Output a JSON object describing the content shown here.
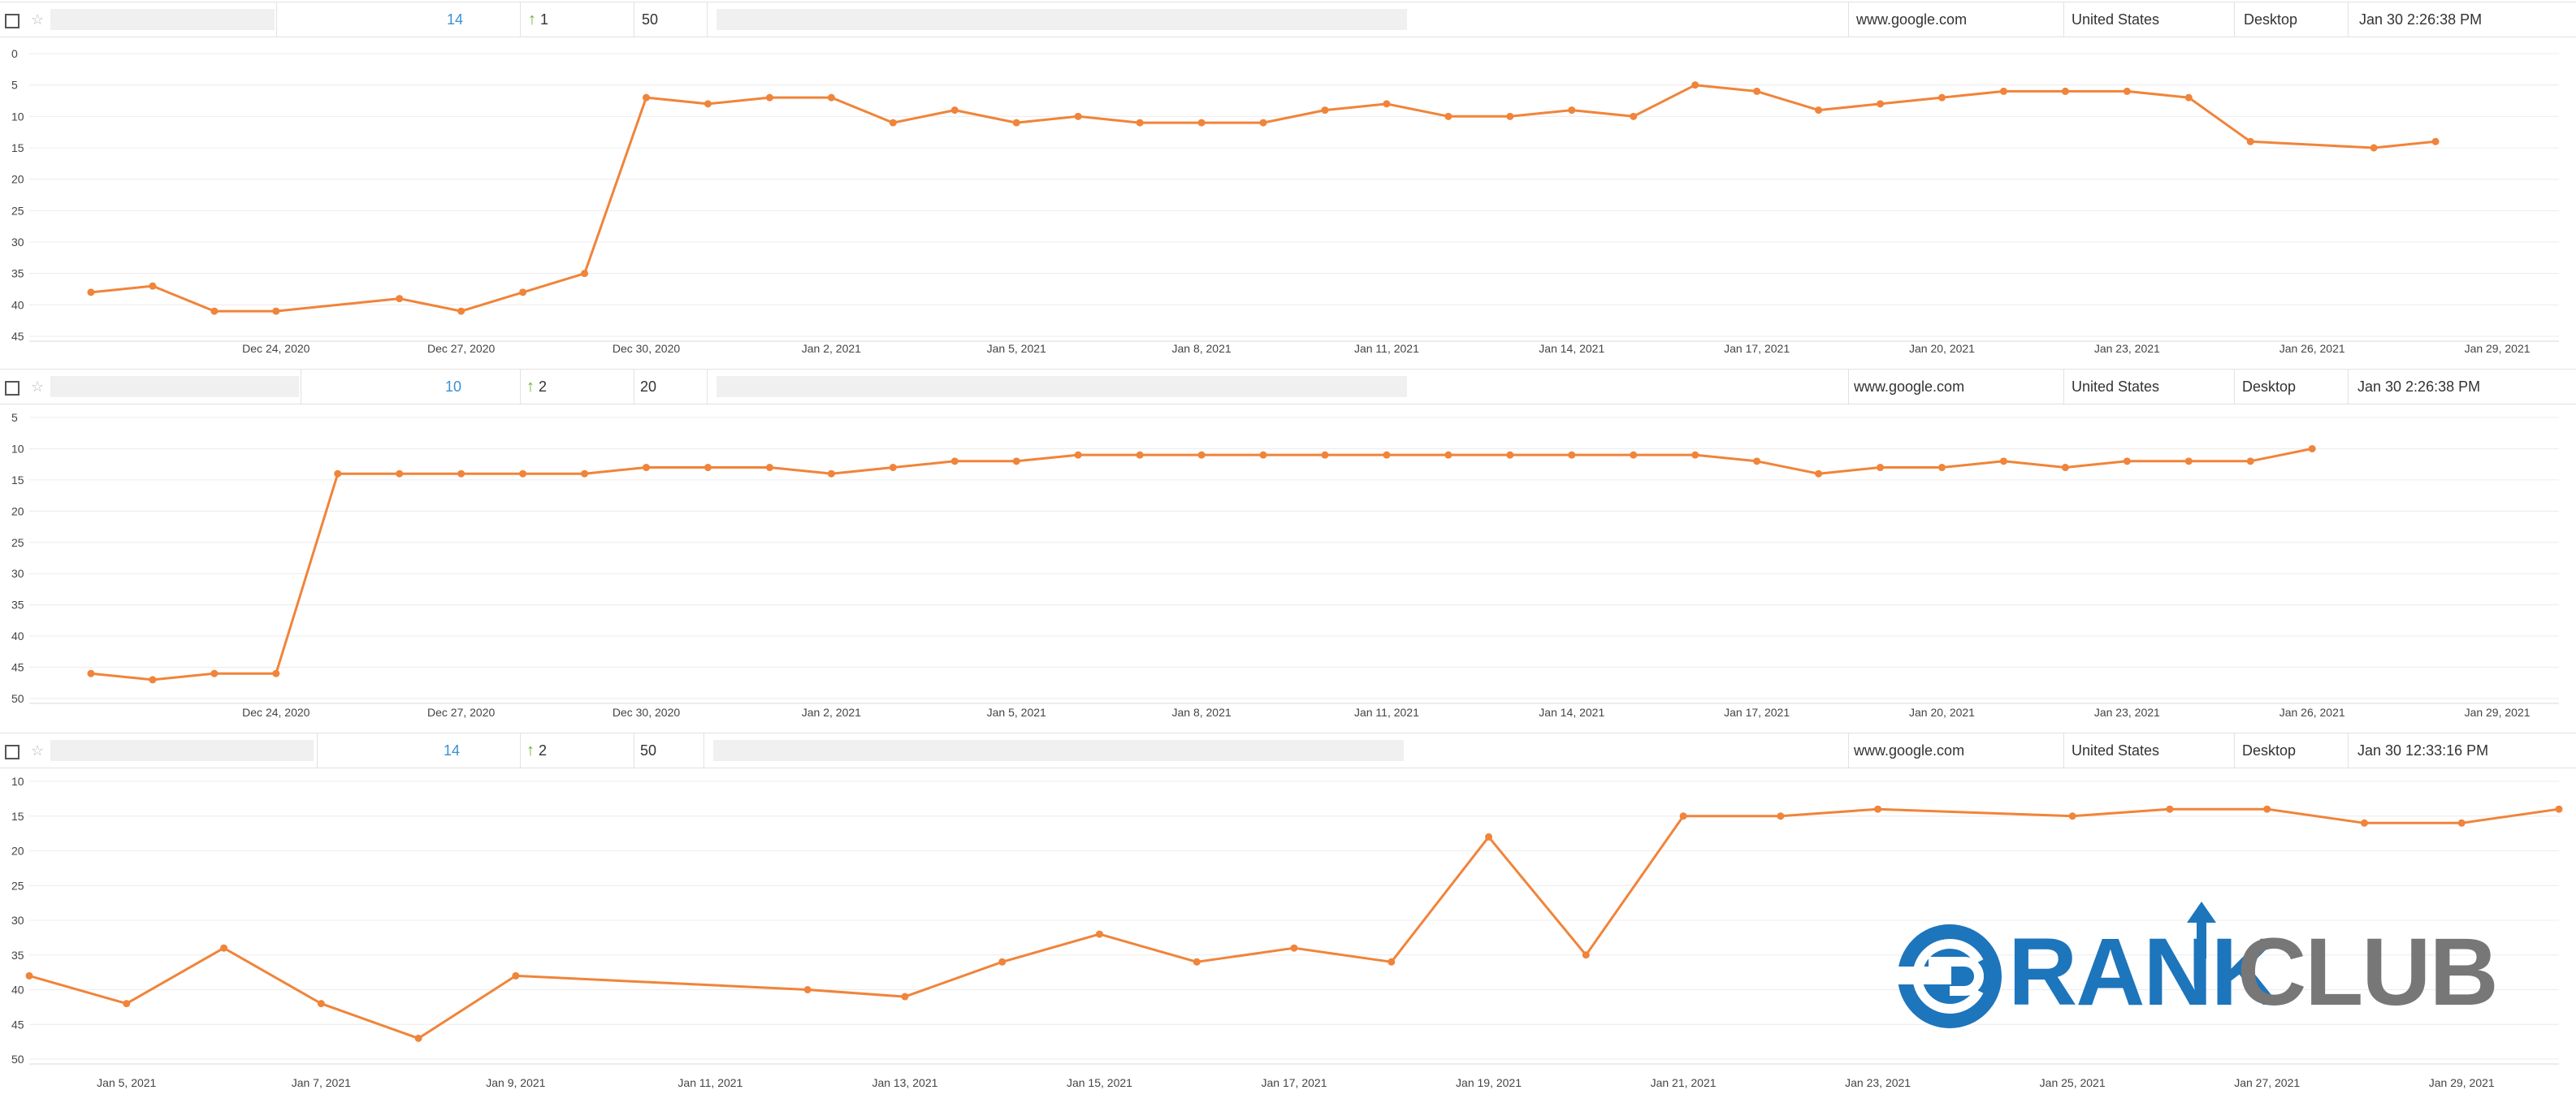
{
  "series_color": "#f0843a",
  "logo": {
    "part1": "RANK",
    "part2": "CLUB",
    "colors": {
      "blue": "#1d75bc",
      "gray": "#777777"
    }
  },
  "rows": [
    {
      "rank": "14",
      "change": "1",
      "change_icon": "up-arrow-icon",
      "volume": "50",
      "engine": "www.google.com",
      "location": "United States",
      "device": "Desktop",
      "checked": "Jan 30 2:26:38 PM"
    },
    {
      "rank": "10",
      "change": "2",
      "change_icon": "up-arrow-icon",
      "volume": "20",
      "engine": "www.google.com",
      "location": "United States",
      "device": "Desktop",
      "checked": "Jan 30 2:26:38 PM"
    },
    {
      "rank": "14",
      "change": "2",
      "change_icon": "up-arrow-icon",
      "volume": "50",
      "engine": "www.google.com",
      "location": "United States",
      "device": "Desktop",
      "checked": "Jan 30 12:33:16 PM"
    }
  ],
  "chart_data": [
    {
      "type": "line",
      "y_reversed": true,
      "ylim": [
        0,
        45
      ],
      "yticks": [
        0,
        5,
        10,
        15,
        20,
        25,
        30,
        35,
        40,
        45
      ],
      "xlim": [
        "2020-12-20",
        "2021-01-30"
      ],
      "xticks": [
        "Dec 24, 2020",
        "Dec 27, 2020",
        "Dec 30, 2020",
        "Jan 2, 2021",
        "Jan 5, 2021",
        "Jan 8, 2021",
        "Jan 11, 2021",
        "Jan 14, 2021",
        "Jan 17, 2021",
        "Jan 20, 2021",
        "Jan 23, 2021",
        "Jan 26, 2021",
        "Jan 29, 2021"
      ],
      "xtick_dates": [
        "2020-12-24",
        "2020-12-27",
        "2020-12-30",
        "2021-01-02",
        "2021-01-05",
        "2021-01-08",
        "2021-01-11",
        "2021-01-14",
        "2021-01-17",
        "2021-01-20",
        "2021-01-23",
        "2021-01-26",
        "2021-01-29"
      ],
      "grid": true,
      "points": [
        [
          "2020-12-21",
          38
        ],
        [
          "2020-12-22",
          37
        ],
        [
          "2020-12-23",
          41
        ],
        [
          "2020-12-24",
          41
        ],
        [
          "2020-12-26",
          39
        ],
        [
          "2020-12-27",
          41
        ],
        [
          "2020-12-28",
          38
        ],
        [
          "2020-12-29",
          35
        ],
        [
          "2020-12-30",
          7
        ],
        [
          "2020-12-31",
          8
        ],
        [
          "2021-01-01",
          7
        ],
        [
          "2021-01-02",
          7
        ],
        [
          "2021-01-03",
          11
        ],
        [
          "2021-01-04",
          9
        ],
        [
          "2021-01-05",
          11
        ],
        [
          "2021-01-06",
          10
        ],
        [
          "2021-01-07",
          11
        ],
        [
          "2021-01-08",
          11
        ],
        [
          "2021-01-09",
          11
        ],
        [
          "2021-01-10",
          9
        ],
        [
          "2021-01-11",
          8
        ],
        [
          "2021-01-12",
          10
        ],
        [
          "2021-01-13",
          10
        ],
        [
          "2021-01-14",
          9
        ],
        [
          "2021-01-15",
          10
        ],
        [
          "2021-01-16",
          5
        ],
        [
          "2021-01-17",
          6
        ],
        [
          "2021-01-18",
          9
        ],
        [
          "2021-01-19",
          8
        ],
        [
          "2021-01-20",
          7
        ],
        [
          "2021-01-21",
          6
        ],
        [
          "2021-01-22",
          6
        ],
        [
          "2021-01-23",
          6
        ],
        [
          "2021-01-24",
          7
        ],
        [
          "2021-01-25",
          14
        ],
        [
          "2021-01-27",
          15
        ],
        [
          "2021-01-28",
          14
        ]
      ]
    },
    {
      "type": "line",
      "y_reversed": true,
      "ylim": [
        5,
        50
      ],
      "yticks": [
        5,
        10,
        15,
        20,
        25,
        30,
        35,
        40,
        45,
        50
      ],
      "xlim": [
        "2020-12-20",
        "2021-01-30"
      ],
      "xticks": [
        "Dec 24, 2020",
        "Dec 27, 2020",
        "Dec 30, 2020",
        "Jan 2, 2021",
        "Jan 5, 2021",
        "Jan 8, 2021",
        "Jan 11, 2021",
        "Jan 14, 2021",
        "Jan 17, 2021",
        "Jan 20, 2021",
        "Jan 23, 2021",
        "Jan 26, 2021",
        "Jan 29, 2021"
      ],
      "xtick_dates": [
        "2020-12-24",
        "2020-12-27",
        "2020-12-30",
        "2021-01-02",
        "2021-01-05",
        "2021-01-08",
        "2021-01-11",
        "2021-01-14",
        "2021-01-17",
        "2021-01-20",
        "2021-01-23",
        "2021-01-26",
        "2021-01-29"
      ],
      "grid": true,
      "points": [
        [
          "2020-12-21",
          46
        ],
        [
          "2020-12-22",
          47
        ],
        [
          "2020-12-23",
          46
        ],
        [
          "2020-12-24",
          46
        ],
        [
          "2020-12-25",
          14
        ],
        [
          "2020-12-26",
          14
        ],
        [
          "2020-12-27",
          14
        ],
        [
          "2020-12-28",
          14
        ],
        [
          "2020-12-29",
          14
        ],
        [
          "2020-12-30",
          13
        ],
        [
          "2020-12-31",
          13
        ],
        [
          "2021-01-01",
          13
        ],
        [
          "2021-01-02",
          14
        ],
        [
          "2021-01-03",
          13
        ],
        [
          "2021-01-04",
          12
        ],
        [
          "2021-01-05",
          12
        ],
        [
          "2021-01-06",
          11
        ],
        [
          "2021-01-07",
          11
        ],
        [
          "2021-01-08",
          11
        ],
        [
          "2021-01-09",
          11
        ],
        [
          "2021-01-10",
          11
        ],
        [
          "2021-01-11",
          11
        ],
        [
          "2021-01-12",
          11
        ],
        [
          "2021-01-13",
          11
        ],
        [
          "2021-01-14",
          11
        ],
        [
          "2021-01-15",
          11
        ],
        [
          "2021-01-16",
          11
        ],
        [
          "2021-01-17",
          12
        ],
        [
          "2021-01-18",
          14
        ],
        [
          "2021-01-19",
          13
        ],
        [
          "2021-01-20",
          13
        ],
        [
          "2021-01-21",
          12
        ],
        [
          "2021-01-22",
          13
        ],
        [
          "2021-01-23",
          12
        ],
        [
          "2021-01-24",
          12
        ],
        [
          "2021-01-25",
          12
        ],
        [
          "2021-01-26",
          10
        ]
      ]
    },
    {
      "type": "line",
      "y_reversed": true,
      "ylim": [
        10,
        50
      ],
      "yticks": [
        10,
        15,
        20,
        25,
        30,
        35,
        40,
        45,
        50
      ],
      "xlim": [
        "2021-01-04",
        "2021-01-30"
      ],
      "xticks": [
        "Jan 5, 2021",
        "Jan 7, 2021",
        "Jan 9, 2021",
        "Jan 11, 2021",
        "Jan 13, 2021",
        "Jan 15, 2021",
        "Jan 17, 2021",
        "Jan 19, 2021",
        "Jan 21, 2021",
        "Jan 23, 2021",
        "Jan 25, 2021",
        "Jan 27, 2021",
        "Jan 29, 2021"
      ],
      "xtick_dates": [
        "2021-01-05",
        "2021-01-07",
        "2021-01-09",
        "2021-01-11",
        "2021-01-13",
        "2021-01-15",
        "2021-01-17",
        "2021-01-19",
        "2021-01-21",
        "2021-01-23",
        "2021-01-25",
        "2021-01-27",
        "2021-01-29"
      ],
      "grid": true,
      "points": [
        [
          "2021-01-04",
          38
        ],
        [
          "2021-01-05",
          42
        ],
        [
          "2021-01-06",
          34
        ],
        [
          "2021-01-07",
          42
        ],
        [
          "2021-01-08",
          47
        ],
        [
          "2021-01-09",
          38
        ],
        [
          "2021-01-12",
          40
        ],
        [
          "2021-01-13",
          41
        ],
        [
          "2021-01-14",
          36
        ],
        [
          "2021-01-15",
          32
        ],
        [
          "2021-01-16",
          36
        ],
        [
          "2021-01-17",
          34
        ],
        [
          "2021-01-18",
          36
        ],
        [
          "2021-01-19",
          18
        ],
        [
          "2021-01-20",
          35
        ],
        [
          "2021-01-21",
          15
        ],
        [
          "2021-01-22",
          15
        ],
        [
          "2021-01-23",
          14
        ],
        [
          "2021-01-25",
          15
        ],
        [
          "2021-01-26",
          14
        ],
        [
          "2021-01-27",
          14
        ],
        [
          "2021-01-28",
          16
        ],
        [
          "2021-01-29",
          16
        ],
        [
          "2021-01-30",
          14
        ]
      ]
    }
  ]
}
